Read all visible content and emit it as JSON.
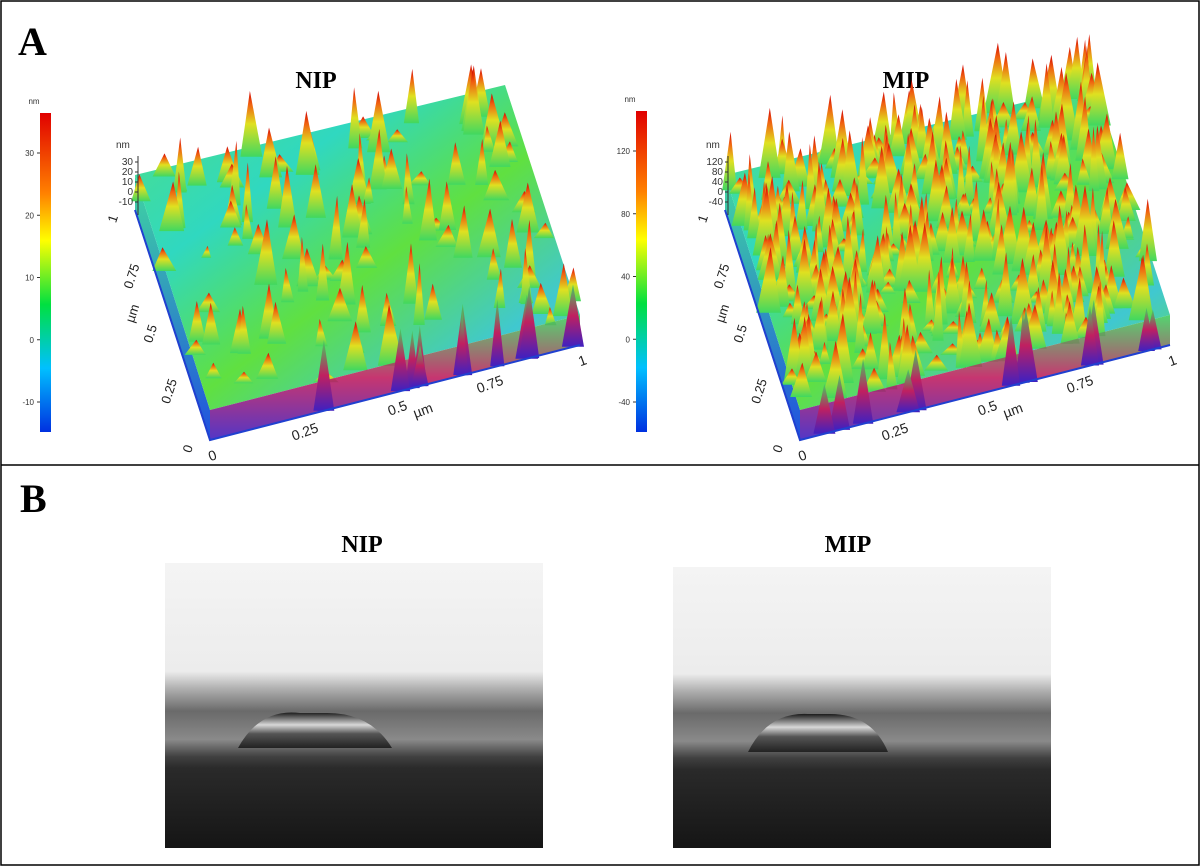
{
  "panel_a": {
    "label": "A",
    "nip": {
      "title": "NIP",
      "colorbar": {
        "unit": "nm",
        "ticks": [
          30,
          20,
          10,
          0,
          -10
        ]
      },
      "z_axis": {
        "unit": "nm",
        "ticks": [
          30,
          20,
          10,
          0,
          -10
        ]
      },
      "y_axis": {
        "unit": "µm",
        "ticks": [
          0,
          0.25,
          0.5,
          0.75,
          1
        ]
      },
      "x_axis": {
        "unit": "µm",
        "ticks": [
          0,
          0.25,
          0.5,
          0.75,
          1
        ]
      }
    },
    "mip": {
      "title": "MIP",
      "colorbar": {
        "unit": "nm",
        "ticks": [
          120,
          80,
          40,
          0,
          -40
        ]
      },
      "z_axis": {
        "unit": "nm",
        "ticks": [
          120,
          80,
          40,
          0,
          -40
        ]
      },
      "y_axis": {
        "unit": "µm",
        "ticks": [
          0,
          0.25,
          0.5,
          0.75,
          1
        ]
      },
      "x_axis": {
        "unit": "µm",
        "ticks": [
          0,
          0.25,
          0.5,
          0.75,
          1
        ]
      }
    }
  },
  "panel_b": {
    "label": "B",
    "nip": {
      "title": "NIP"
    },
    "mip": {
      "title": "MIP"
    }
  }
}
